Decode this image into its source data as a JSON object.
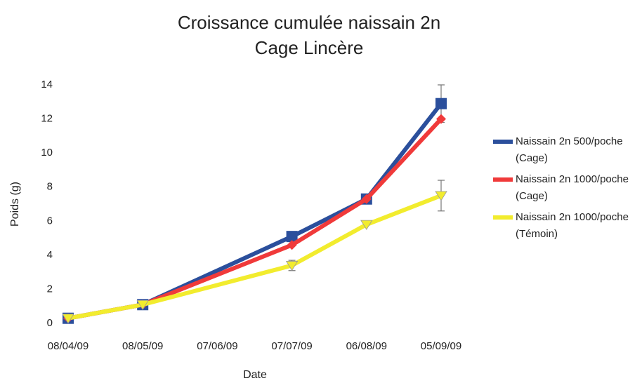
{
  "chart_data": {
    "type": "line",
    "title": "Croissance cumulée naissain 2n",
    "subtitle": "Cage Lincère",
    "x_label": "Date",
    "y_label": "Poids (g)",
    "categories": [
      "08/04/09",
      "08/05/09",
      "07/06/09",
      "07/07/09",
      "06/08/09",
      "05/09/09"
    ],
    "ylim": [
      0,
      14
    ],
    "yticks": [
      0,
      2,
      4,
      6,
      8,
      10,
      12,
      14
    ],
    "grid": false,
    "legend": "right",
    "series": [
      {
        "name": "Naissain 2n 500/poche (Cage)",
        "color": "#2b4f9c",
        "marker": "square",
        "x": [
          "08/04/09",
          "08/05/09",
          "07/07/09",
          "06/08/09",
          "05/09/09"
        ],
        "values": [
          0.3,
          1.1,
          5.1,
          7.3,
          12.9
        ],
        "errors": [
          null,
          null,
          null,
          null,
          1.1
        ]
      },
      {
        "name": "Naissain 2n 1000/poche (Cage)",
        "color": "#f03a3a",
        "marker": "diamond",
        "x": [
          "08/04/09",
          "08/05/09",
          "07/07/09",
          "06/08/09",
          "05/09/09"
        ],
        "values": [
          0.3,
          1.1,
          4.6,
          7.3,
          12.0
        ]
      },
      {
        "name": "Naissain 2n 1000/poche (Témoin)",
        "color": "#f2ec2e",
        "marker": "triangle-down",
        "x": [
          "08/04/09",
          "08/05/09",
          "07/07/09",
          "06/08/09",
          "05/09/09"
        ],
        "values": [
          0.3,
          1.1,
          3.4,
          5.8,
          7.5
        ],
        "errors": [
          null,
          null,
          0.3,
          null,
          0.9
        ]
      }
    ]
  }
}
